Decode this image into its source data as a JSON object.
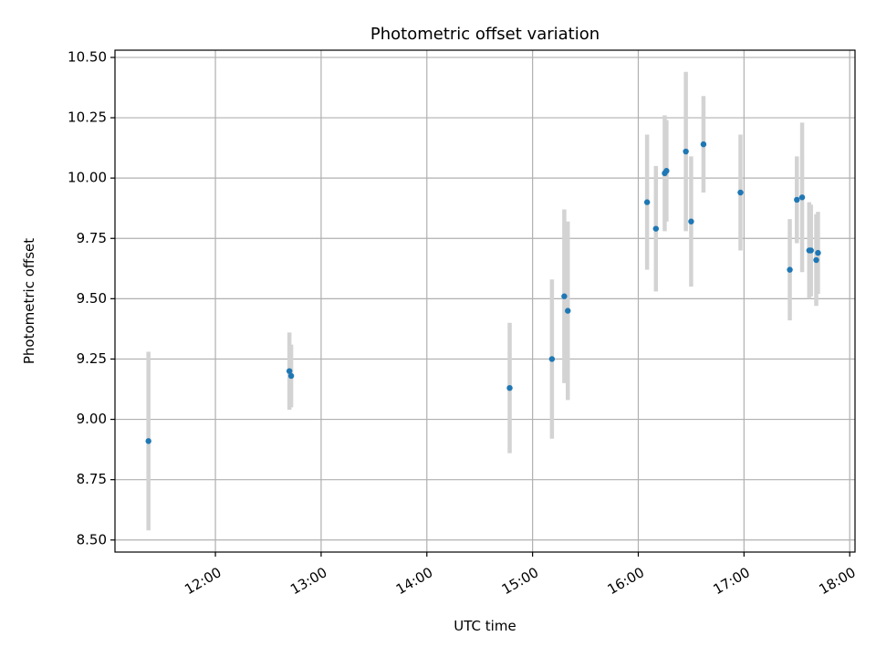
{
  "chart_data": {
    "type": "scatter",
    "title": "Photometric offset variation",
    "xlabel": "UTC time",
    "ylabel": "Photometric offset",
    "x_ticks": [
      "12:00",
      "13:00",
      "14:00",
      "15:00",
      "16:00",
      "17:00",
      "18:00"
    ],
    "y_ticks": [
      "8.50",
      "8.75",
      "9.00",
      "9.25",
      "9.50",
      "9.75",
      "10.00",
      "10.25",
      "10.50"
    ],
    "ylim": [
      8.45,
      10.53
    ],
    "xlim": [
      "11:03",
      "18:03"
    ],
    "grid": true,
    "point_color": "#1f77b4",
    "errorbar_color": "#d3d3d3",
    "points": [
      {
        "x": "11:22",
        "y": 8.91,
        "err": 0.37
      },
      {
        "x": "12:42",
        "y": 9.2,
        "err": 0.16
      },
      {
        "x": "12:43",
        "y": 9.18,
        "err": 0.13
      },
      {
        "x": "14:47",
        "y": 9.13,
        "err": 0.27
      },
      {
        "x": "15:11",
        "y": 9.25,
        "err": 0.33
      },
      {
        "x": "15:18",
        "y": 9.51,
        "err": 0.36
      },
      {
        "x": "15:20",
        "y": 9.45,
        "err": 0.37
      },
      {
        "x": "16:05",
        "y": 9.9,
        "err": 0.28
      },
      {
        "x": "16:10",
        "y": 9.79,
        "err": 0.26
      },
      {
        "x": "16:15",
        "y": 10.02,
        "err": 0.24
      },
      {
        "x": "16:16",
        "y": 10.03,
        "err": 0.21
      },
      {
        "x": "16:27",
        "y": 10.11,
        "err": 0.33
      },
      {
        "x": "16:30",
        "y": 9.82,
        "err": 0.27
      },
      {
        "x": "16:37",
        "y": 10.14,
        "err": 0.2
      },
      {
        "x": "16:58",
        "y": 9.94,
        "err": 0.24
      },
      {
        "x": "17:26",
        "y": 9.62,
        "err": 0.21
      },
      {
        "x": "17:30",
        "y": 9.91,
        "err": 0.18
      },
      {
        "x": "17:33",
        "y": 9.92,
        "err": 0.31
      },
      {
        "x": "17:37",
        "y": 9.7,
        "err": 0.2
      },
      {
        "x": "17:38",
        "y": 9.7,
        "err": 0.19
      },
      {
        "x": "17:41",
        "y": 9.66,
        "err": 0.19
      },
      {
        "x": "17:42",
        "y": 9.69,
        "err": 0.17
      }
    ]
  }
}
